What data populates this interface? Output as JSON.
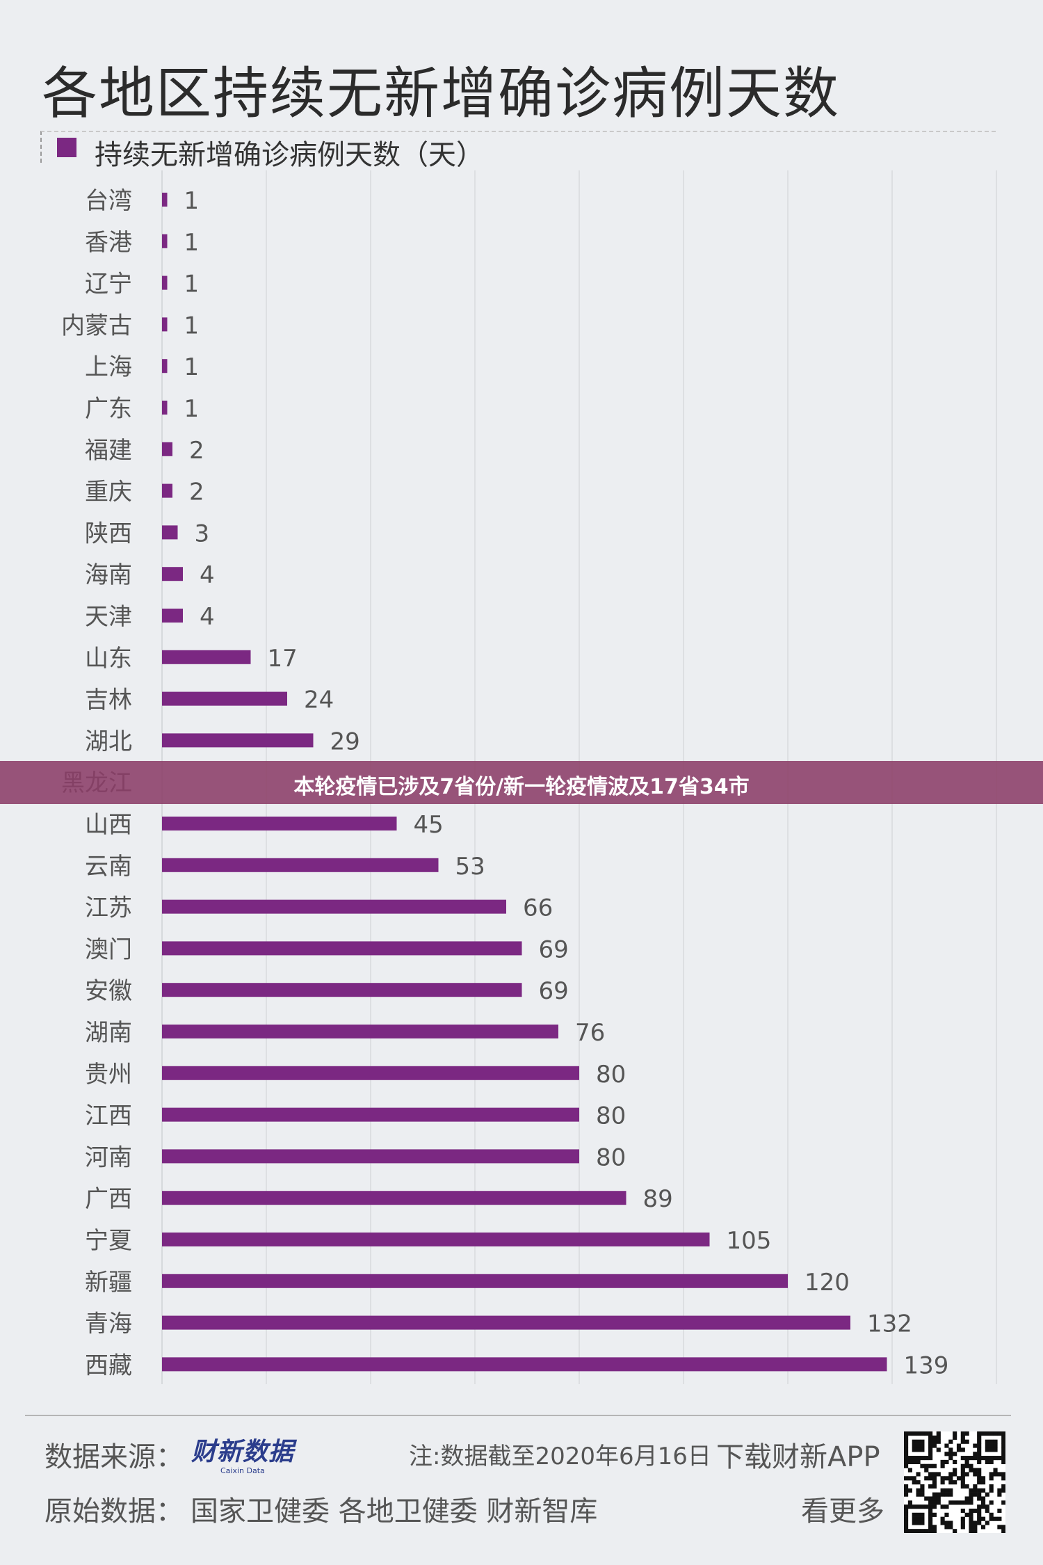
{
  "chart_data": {
    "type": "bar",
    "orientation": "horizontal",
    "title": "各地区持续无新增确诊病例天数",
    "legend": "持续无新增确诊病例天数（天）",
    "categories": [
      "台湾",
      "香港",
      "辽宁",
      "内蒙古",
      "上海",
      "广东",
      "福建",
      "重庆",
      "陕西",
      "海南",
      "天津",
      "山东",
      "吉林",
      "湖北",
      "黑龙江",
      "山西",
      "云南",
      "江苏",
      "澳门",
      "安徽",
      "湖南",
      "贵州",
      "江西",
      "河南",
      "广西",
      "宁夏",
      "新疆",
      "青海",
      "西藏"
    ],
    "values": [
      1,
      1,
      1,
      1,
      1,
      1,
      2,
      2,
      3,
      4,
      4,
      17,
      24,
      29,
      null,
      45,
      53,
      66,
      69,
      69,
      76,
      80,
      80,
      80,
      89,
      105,
      120,
      132,
      139
    ],
    "bar_color": "#7b2882",
    "xlim": [
      0,
      160
    ],
    "grid": true,
    "legend_position": "top-left"
  },
  "banner": "本轮疫情已涉及7省份/新一轮疫情波及17省34市",
  "footer": {
    "source_label": "数据来源：",
    "logo_cn": "财新数据",
    "logo_en": "Caixin Data",
    "note": "注:数据截至2020年6月16日",
    "download": "下载财新APP",
    "original_label": "原始数据：",
    "original_sources": "国家卫健委  各地卫健委  财新智库",
    "more": "看更多"
  }
}
